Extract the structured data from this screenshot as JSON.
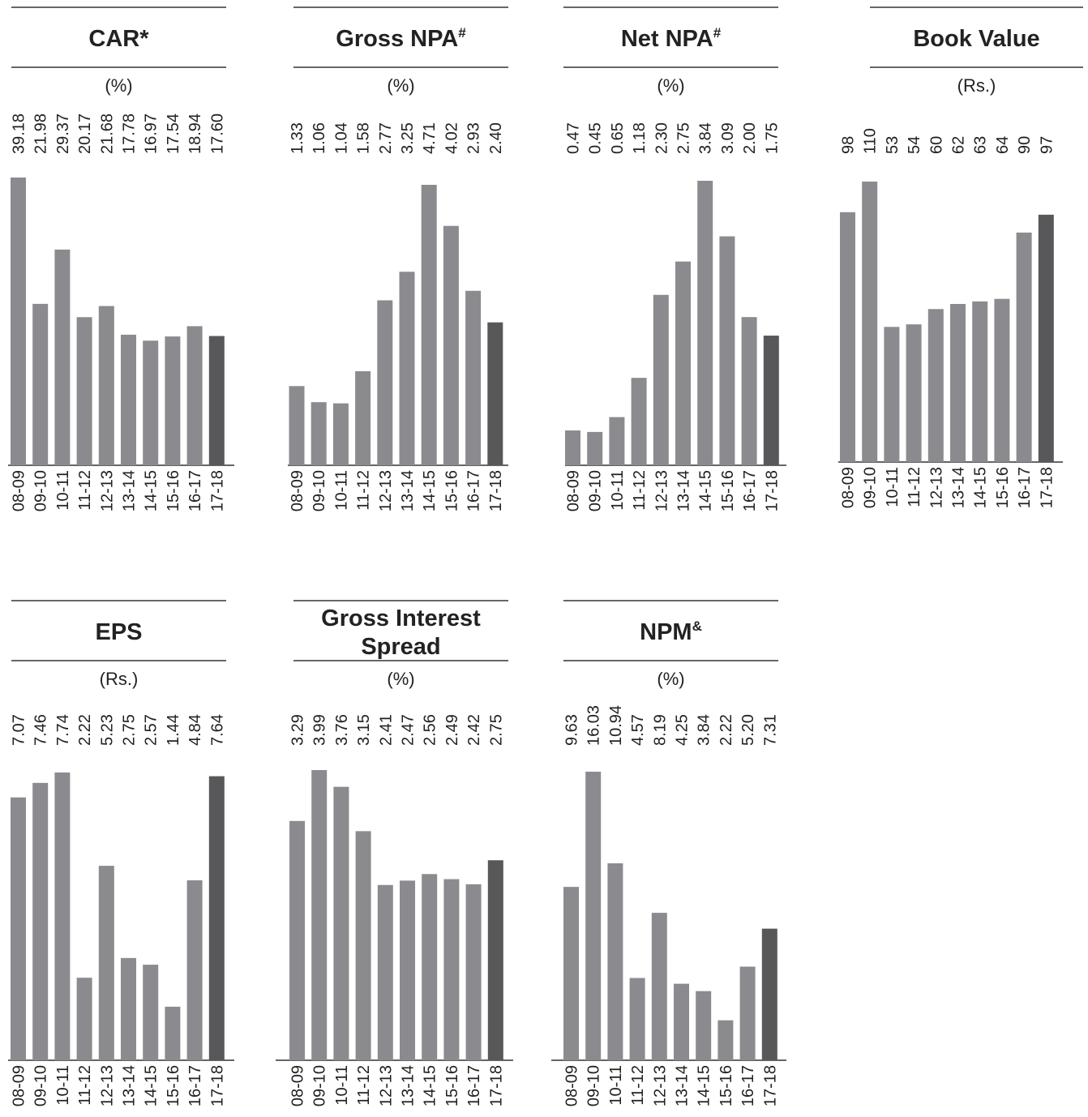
{
  "chart_data": [
    {
      "type": "bar",
      "title": "CAR",
      "title_mark": "*",
      "unit": "(%)",
      "categories": [
        "08-09",
        "09-10",
        "10-11",
        "11-12",
        "12-13",
        "13-14",
        "14-15",
        "15-16",
        "16-17",
        "17-18"
      ],
      "values": [
        39.18,
        21.98,
        29.37,
        20.17,
        21.68,
        17.78,
        16.97,
        17.54,
        18.94,
        17.6
      ],
      "value_labels": [
        "39.18",
        "21.98",
        "29.37",
        "20.17",
        "21.68",
        "17.78",
        "16.97",
        "17.54",
        "18.94",
        "17.60"
      ],
      "highlight_last": true
    },
    {
      "type": "bar",
      "title": "Gross NPA",
      "title_mark": "#",
      "unit": "(%)",
      "categories": [
        "08-09",
        "09-10",
        "10-11",
        "11-12",
        "12-13",
        "13-14",
        "14-15",
        "15-16",
        "16-17",
        "17-18"
      ],
      "values": [
        1.33,
        1.06,
        1.04,
        1.58,
        2.77,
        3.25,
        4.71,
        4.02,
        2.93,
        2.4
      ],
      "value_labels": [
        "1.33",
        "1.06",
        "1.04",
        "1.58",
        "2.77",
        "3.25",
        "4.71",
        "4.02",
        "2.93",
        "2.40"
      ],
      "highlight_last": true
    },
    {
      "type": "bar",
      "title": "Net NPA",
      "title_mark": "#",
      "unit": "(%)",
      "categories": [
        "08-09",
        "09-10",
        "10-11",
        "11-12",
        "12-13",
        "13-14",
        "14-15",
        "15-16",
        "16-17",
        "17-18"
      ],
      "values": [
        0.47,
        0.45,
        0.65,
        1.18,
        2.3,
        2.75,
        3.84,
        3.09,
        2.0,
        1.75
      ],
      "value_labels": [
        "0.47",
        "0.45",
        "0.65",
        "1.18",
        "2.30",
        "2.75",
        "3.84",
        "3.09",
        "2.00",
        "1.75"
      ],
      "highlight_last": true
    },
    {
      "type": "bar",
      "title": "Book Value",
      "title_mark": "",
      "unit": "(Rs.)",
      "categories": [
        "08-09",
        "09-10",
        "10-11",
        "11-12",
        "12-13",
        "13-14",
        "14-15",
        "15-16",
        "16-17",
        "17-18"
      ],
      "values": [
        98,
        110,
        53,
        54,
        60,
        62,
        63,
        64,
        90,
        97
      ],
      "value_labels": [
        "98",
        "110",
        "53",
        "54",
        "60",
        "62",
        "63",
        "64",
        "90",
        "97"
      ],
      "highlight_last": true
    },
    {
      "type": "bar",
      "title": "EPS",
      "title_mark": "",
      "unit": "(Rs.)",
      "categories": [
        "08-09",
        "09-10",
        "10-11",
        "11-12",
        "12-13",
        "13-14",
        "14-15",
        "15-16",
        "16-17",
        "17-18"
      ],
      "values": [
        7.07,
        7.46,
        7.74,
        2.22,
        5.23,
        2.75,
        2.57,
        1.44,
        4.84,
        7.64
      ],
      "value_labels": [
        "7.07",
        "7.46",
        "7.74",
        "2.22",
        "5.23",
        "2.75",
        "2.57",
        "1.44",
        "4.84",
        "7.64"
      ],
      "highlight_last": true
    },
    {
      "type": "bar",
      "title": "Gross Interest Spread",
      "title_lines": [
        "Gross Interest",
        "Spread"
      ],
      "title_mark": "",
      "unit": "(%)",
      "categories": [
        "08-09",
        "09-10",
        "10-11",
        "11-12",
        "12-13",
        "13-14",
        "14-15",
        "15-16",
        "16-17",
        "17-18"
      ],
      "values": [
        3.29,
        3.99,
        3.76,
        3.15,
        2.41,
        2.47,
        2.56,
        2.49,
        2.42,
        2.75
      ],
      "value_labels": [
        "3.29",
        "3.99",
        "3.76",
        "3.15",
        "2.41",
        "2.47",
        "2.56",
        "2.49",
        "2.42",
        "2.75"
      ],
      "highlight_last": true
    },
    {
      "type": "bar",
      "title": "NPM",
      "title_mark": "&",
      "unit": "(%)",
      "categories": [
        "08-09",
        "09-10",
        "10-11",
        "11-12",
        "12-13",
        "13-14",
        "14-15",
        "15-16",
        "16-17",
        "17-18"
      ],
      "values": [
        9.63,
        16.03,
        10.94,
        4.57,
        8.19,
        4.25,
        3.84,
        2.22,
        5.2,
        7.31
      ],
      "value_labels": [
        "9.63",
        "16.03",
        "10.94",
        "4.57",
        "8.19",
        "4.25",
        "3.84",
        "2.22",
        "5.20",
        "7.31"
      ],
      "highlight_last": true
    }
  ],
  "colors": {
    "bar": "#8b8b8f",
    "bar_highlight": "#58585a",
    "rule": "#333333",
    "text": "#222222"
  }
}
